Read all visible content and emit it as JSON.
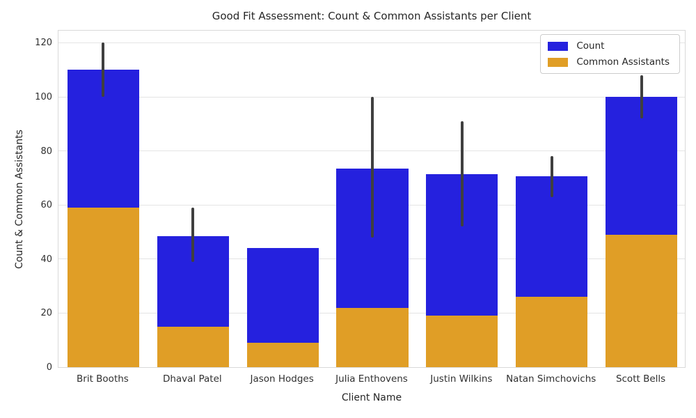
{
  "chart_data": {
    "type": "bar",
    "title": "Good Fit Assessment: Count & Common Assistants per Client",
    "xlabel": "Client Name",
    "ylabel": "Count & Common Assistants",
    "ylim": [
      0,
      125
    ],
    "yticks": [
      0,
      20,
      40,
      60,
      80,
      100,
      120
    ],
    "grid": "horizontal",
    "legend_position": "upper right",
    "categories": [
      "Brit Booths",
      "Dhaval Patel",
      "Jason Hodges",
      "Julia Enthovens",
      "Justin Wilkins",
      "Natan Simchovichs",
      "Scott Bells"
    ],
    "series": [
      {
        "name": "Count",
        "color": "#2521de",
        "values": [
          110,
          48.5,
          44,
          73.5,
          71.5,
          70.5,
          100
        ],
        "error_low": [
          100,
          39,
          null,
          48,
          52,
          63,
          92
        ],
        "error_high": [
          120,
          59,
          null,
          100,
          91,
          78,
          108
        ]
      },
      {
        "name": "Common Assistants",
        "color": "#e09e26",
        "values": [
          59,
          15,
          9,
          22,
          19,
          26,
          49
        ],
        "error_low": [
          null,
          null,
          null,
          null,
          null,
          null,
          null
        ],
        "error_high": [
          null,
          null,
          null,
          null,
          null,
          null,
          null
        ]
      }
    ],
    "error_bar_color": "#3f3f3f"
  }
}
